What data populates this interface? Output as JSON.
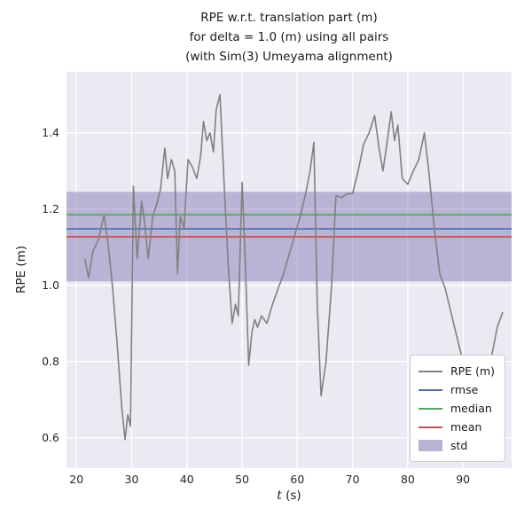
{
  "chart_data": {
    "type": "line",
    "title": "RPE w.r.t. translation part (m)\nfor delta = 1.0 (m) using all pairs\n(with Sim(3) Umeyama alignment)",
    "title_lines": [
      "RPE w.r.t. translation part (m)",
      "for delta = 1.0 (m) using all pairs",
      "(with Sim(3) Umeyama alignment)"
    ],
    "xlabel": "t (s)",
    "xlabel_var": "t",
    "xlabel_unit": " (s)",
    "ylabel": "RPE (m)",
    "xlim": [
      18.2,
      98.8
    ],
    "ylim": [
      0.52,
      1.56
    ],
    "xticks": [
      20,
      30,
      40,
      50,
      60,
      70,
      80,
      90
    ],
    "yticks": [
      0.6,
      0.8,
      1.0,
      1.2,
      1.4
    ],
    "grid": true,
    "legend_position": "lower right",
    "series": [
      {
        "name": "RPE (m)",
        "type": "line",
        "color": "#808080",
        "x": [
          21.5,
          22.2,
          23.0,
          24.0,
          25.0,
          25.8,
          26.5,
          27.3,
          28.2,
          28.8,
          29.3,
          29.8,
          30.3,
          31.0,
          31.8,
          32.3,
          33.0,
          33.8,
          34.5,
          35.2,
          36.0,
          36.5,
          37.2,
          37.8,
          38.3,
          38.8,
          39.5,
          40.2,
          41.0,
          41.8,
          42.5,
          43.0,
          43.6,
          44.2,
          44.8,
          45.3,
          46.0,
          46.8,
          47.5,
          48.2,
          48.8,
          49.3,
          50.0,
          50.6,
          51.2,
          51.8,
          52.3,
          52.8,
          53.5,
          54.5,
          55.5,
          56.5,
          57.5,
          58.5,
          59.5,
          60.5,
          61.5,
          62.3,
          63.0,
          63.6,
          64.3,
          65.2,
          66.2,
          67.0,
          68.0,
          69.0,
          70.0,
          71.0,
          72.0,
          73.0,
          74.0,
          74.8,
          75.5,
          76.3,
          77.0,
          77.6,
          78.2,
          79.0,
          80.0,
          81.0,
          82.0,
          83.0,
          83.8,
          84.8,
          85.8,
          86.8,
          87.8,
          88.8,
          90.0,
          91.0,
          92.0,
          93.5,
          95.0,
          96.2,
          97.2
        ],
        "y": [
          1.07,
          1.02,
          1.09,
          1.12,
          1.185,
          1.1,
          1.0,
          0.86,
          0.68,
          0.595,
          0.66,
          0.63,
          1.26,
          1.07,
          1.22,
          1.17,
          1.07,
          1.18,
          1.21,
          1.25,
          1.36,
          1.28,
          1.33,
          1.3,
          1.03,
          1.18,
          1.15,
          1.33,
          1.31,
          1.28,
          1.34,
          1.43,
          1.38,
          1.4,
          1.35,
          1.46,
          1.5,
          1.25,
          1.05,
          0.9,
          0.95,
          0.92,
          1.27,
          1.05,
          0.79,
          0.88,
          0.91,
          0.89,
          0.92,
          0.9,
          0.95,
          0.99,
          1.03,
          1.08,
          1.13,
          1.18,
          1.24,
          1.3,
          1.375,
          0.95,
          0.71,
          0.8,
          1.0,
          1.235,
          1.23,
          1.24,
          1.24,
          1.3,
          1.37,
          1.4,
          1.445,
          1.36,
          1.3,
          1.38,
          1.455,
          1.38,
          1.42,
          1.28,
          1.265,
          1.3,
          1.33,
          1.4,
          1.3,
          1.15,
          1.03,
          0.99,
          0.93,
          0.87,
          0.8,
          0.7,
          0.57,
          0.68,
          0.8,
          0.89,
          0.93
        ]
      },
      {
        "name": "rmse",
        "type": "hline",
        "color": "#4c72b0",
        "value": 1.148
      },
      {
        "name": "median",
        "type": "hline",
        "color": "#55a868",
        "value": 1.185
      },
      {
        "name": "mean",
        "type": "hline",
        "color": "#c44e52",
        "value": 1.127
      },
      {
        "name": "std",
        "type": "band",
        "color": "#8172b2",
        "opacity": 0.45,
        "low": 1.01,
        "high": 1.245,
        "value": 0.117
      }
    ]
  },
  "colors": {
    "figure_bg": "#ffffff",
    "axes_bg": "#eaeaf2",
    "grid": "#ffffff",
    "rpe_line": "#808080",
    "rmse": "#4c72b0",
    "median": "#55a868",
    "mean": "#c44e52",
    "std_fill": "#8172b2",
    "tick_text": "#262626"
  }
}
